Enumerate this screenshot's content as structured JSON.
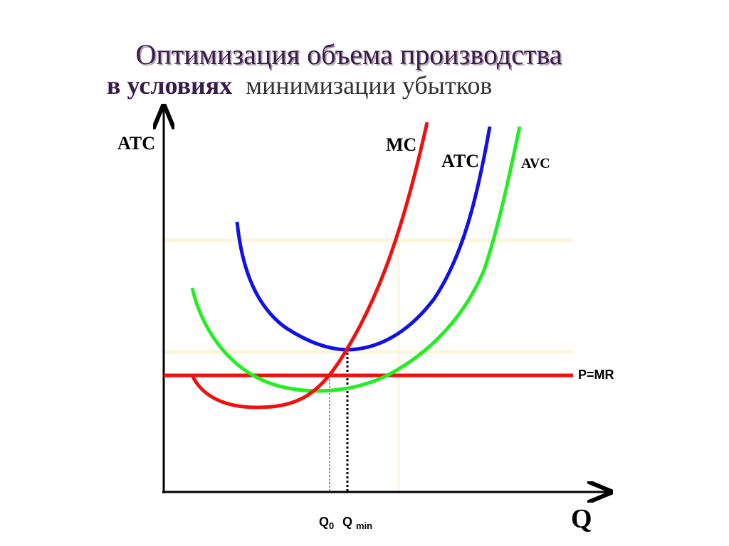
{
  "title": {
    "line1": "Оптимизация объема производства",
    "line2_bold": "в условиях",
    "line2_rest": "минимизации убытков"
  },
  "labels": {
    "y_axis": "ATC",
    "mc": "MC",
    "atc": "ATC",
    "avc": "AVC",
    "price": "P=MR",
    "x_axis": "Q",
    "q0": {
      "text": "Q",
      "sub": "0"
    },
    "qmin": {
      "text": "Q",
      "sub": "min"
    }
  }
}
